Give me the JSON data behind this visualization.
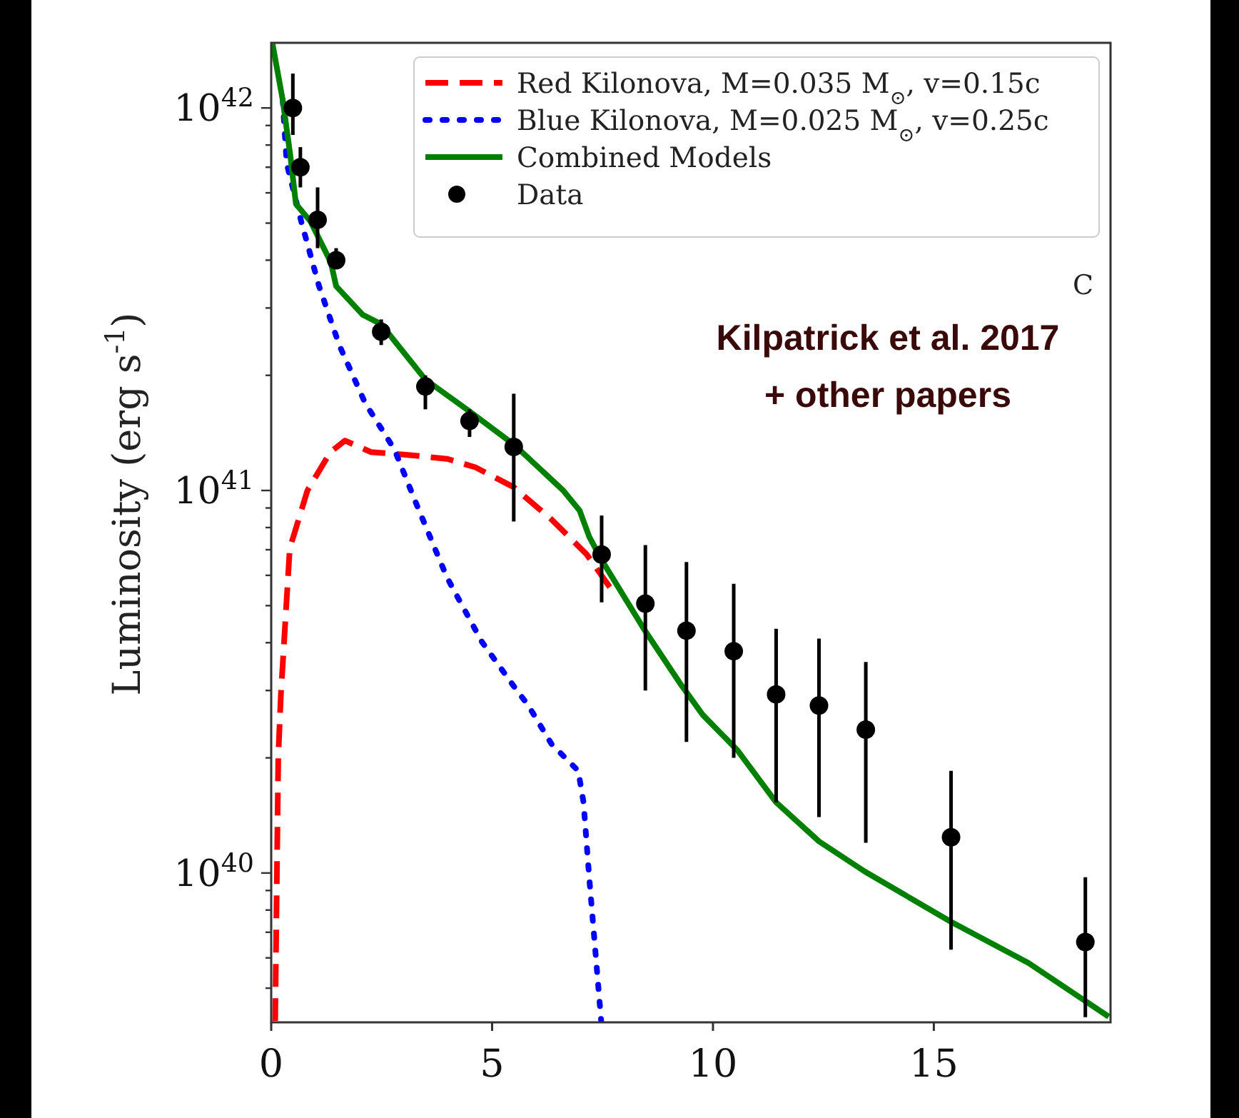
{
  "chart_data": {
    "type": "line",
    "ylabel": "Luminosity (erg s$^{-1}$)",
    "log": "y",
    "legend": "top right",
    "annotations": [
      "C",
      "Kilpatrick et al. 2017",
      "+ other papers"
    ],
    "xlim": [
      0,
      19
    ],
    "xticks": [
      0,
      5,
      10,
      15
    ],
    "ylim": [
      4.07e+39,
      1.48e+42
    ],
    "yticks": [
      {
        "value": 5e+39,
        "label": null
      },
      {
        "value": 6e+39,
        "label": null
      },
      {
        "value": 7e+39,
        "label": null
      },
      {
        "value": 8e+39,
        "label": null
      },
      {
        "value": 9e+39,
        "label": null
      },
      {
        "value": 1e+40,
        "label": "10$^{40}$"
      },
      {
        "value": 2e+40,
        "label": null
      },
      {
        "value": 3e+40,
        "label": null
      },
      {
        "value": 4e+40,
        "label": null
      },
      {
        "value": 5e+40,
        "label": null
      },
      {
        "value": 6e+40,
        "label": null
      },
      {
        "value": 7e+40,
        "label": null
      },
      {
        "value": 8e+40,
        "label": null
      },
      {
        "value": 9e+40,
        "label": null
      },
      {
        "value": 1e+41,
        "label": "10$^{41}$"
      },
      {
        "value": 2e+41,
        "label": null
      },
      {
        "value": 3e+41,
        "label": null
      },
      {
        "value": 4e+41,
        "label": null
      },
      {
        "value": 5e+41,
        "label": null
      },
      {
        "value": 6e+41,
        "label": null
      },
      {
        "value": 7e+41,
        "label": null
      },
      {
        "value": 8e+41,
        "label": null
      },
      {
        "value": 9e+41,
        "label": null
      },
      {
        "value": 1e+42,
        "label": "10$^{42}$"
      }
    ],
    "series": [
      {
        "name": "Red Kilonova, M=0.035 M$_{⊙}$, v=0.15c",
        "color": "#ff0000",
        "line_style": "dashed",
        "x": [
          0.09,
          0.16,
          0.22,
          0.42,
          0.82,
          1.34,
          1.67,
          2.26,
          3.05,
          3.98,
          4.62,
          5.49,
          6.35,
          7.14,
          7.79
        ],
        "values": [
          4.1e+39,
          2.02e+40,
          2.94e+40,
          7.05e+40,
          1e+41,
          1.26e+41,
          1.35e+41,
          1.26e+41,
          1.24e+41,
          1.21e+41,
          1.15e+41,
          1.02e+41,
          8.39e+40,
          6.81e+40,
          5.33e+40
        ]
      },
      {
        "name": "Blue Kilonova, M=0.025 M$_{⊙}$, v=0.25c",
        "color": "#0000ff",
        "line_style": "dotted",
        "x": [
          0.26,
          0.35,
          0.68,
          1.08,
          1.54,
          2.13,
          2.79,
          3.32,
          3.98,
          4.77,
          5.49,
          5.82,
          6.35,
          6.95,
          7.07,
          7.2,
          7.47
        ],
        "values": [
          1.05e+42,
          7.16e+41,
          5.05e+41,
          3.43e+41,
          2.4e+41,
          1.69e+41,
          1.28e+41,
          9.02e+40,
          5.92e+40,
          4.02e+40,
          3.08e+40,
          2.74e+40,
          2.17e+40,
          1.85e+40,
          1.53e+40,
          9.7e+39,
          4.1e+39
        ]
      },
      {
        "name": "Combined Models",
        "color": "#008000",
        "line_style": "solid",
        "x": [
          0.03,
          0.26,
          0.43,
          0.56,
          0.89,
          1.35,
          1.47,
          2.07,
          2.49,
          3.49,
          4.49,
          5.49,
          6.61,
          6.98,
          7.2,
          7.48,
          8.45,
          9.24,
          9.77,
          10.56,
          11.43,
          12.4,
          13.43,
          15.39,
          17.14,
          18.96
        ],
        "values": [
          1.47e+42,
          1.05e+42,
          7.55e+41,
          5.61e+41,
          5.05e+41,
          3.95e+41,
          3.42e+41,
          2.88e+41,
          2.72e+41,
          1.95e+41,
          1.61e+41,
          1.32e+41,
          1e+41,
          8.87e+40,
          7.57e+40,
          6.58e+40,
          4.32e+40,
          3.15e+40,
          2.59e+40,
          2.09e+40,
          1.53e+40,
          1.21e+40,
          1.01e+40,
          7.45e+39,
          5.82e+39,
          4.21e+39
        ]
      },
      {
        "name": "Data",
        "type": "scatter",
        "color": "#000000",
        "marker": "circle",
        "x": [
          0.49,
          0.66,
          1.05,
          1.47,
          2.49,
          3.49,
          4.49,
          5.49,
          7.48,
          8.47,
          9.4,
          10.47,
          11.43,
          12.4,
          13.46,
          15.39,
          18.43
        ],
        "values": [
          1e+42,
          7e+41,
          5.1e+41,
          4e+41,
          2.6e+41,
          1.87e+41,
          1.52e+41,
          1.3e+41,
          6.8e+40,
          5.06e+40,
          4.3e+40,
          3.8e+40,
          2.93e+40,
          2.74e+40,
          2.37e+40,
          1.24e+40,
          6.6e+39
        ],
        "errors": [
          [
            8.5e+41,
            1.23e+42
          ],
          [
            6.2e+41,
            7.9e+41
          ],
          [
            4.3e+41,
            6.2e+41
          ],
          [
            3.8e+41,
            4.3e+41
          ],
          [
            2.4e+41,
            2.8e+41
          ],
          [
            1.63e+41,
            2e+41
          ],
          [
            1.38e+41,
            1.63e+41
          ],
          [
            8.3e+40,
            1.79e+41
          ],
          [
            5.1e+40,
            8.6e+40
          ],
          [
            3e+40,
            7.2e+40
          ],
          [
            2.2e+40,
            6.5e+40
          ],
          [
            2e+40,
            5.7e+40
          ],
          [
            1.53e+40,
            4.35e+40
          ],
          [
            1.4e+40,
            4.1e+40
          ],
          [
            1.2e+40,
            3.56e+40
          ],
          [
            6.3e+39,
            1.85e+40
          ],
          [
            4.2e+39,
            9.75e+39
          ]
        ]
      }
    ]
  }
}
